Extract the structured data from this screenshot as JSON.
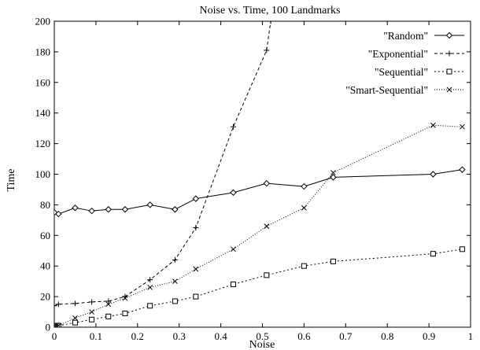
{
  "chart_data": {
    "type": "line",
    "title": "Noise vs. Time, 100 Landmarks",
    "xlabel": "Noise",
    "ylabel": "Time",
    "xlim": [
      0,
      1
    ],
    "ylim": [
      0,
      200
    ],
    "xticks": [
      "0",
      "0.1",
      "0.2",
      "0.3",
      "0.4",
      "0.5",
      "0.6",
      "0.7",
      "0.8",
      "0.9",
      "1"
    ],
    "yticks": [
      "0",
      "20",
      "40",
      "60",
      "80",
      "100",
      "120",
      "140",
      "160",
      "180",
      "200"
    ],
    "grid": false,
    "legend_position": "top-right",
    "series": [
      {
        "name": "\"Random\"",
        "marker": "diamond",
        "dash": "solid",
        "x": [
          0.0,
          0.01,
          0.05,
          0.09,
          0.13,
          0.17,
          0.23,
          0.29,
          0.34,
          0.43,
          0.51,
          0.6,
          0.67,
          0.91,
          0.98
        ],
        "y": [
          75,
          74,
          78,
          76,
          77,
          77,
          80,
          77,
          84,
          88,
          94,
          92,
          98,
          100,
          103
        ]
      },
      {
        "name": "\"Exponential\"",
        "marker": "plus",
        "dash": "dashed",
        "x": [
          0.0,
          0.01,
          0.05,
          0.09,
          0.13,
          0.17,
          0.23,
          0.29,
          0.34,
          0.43,
          0.51,
          0.52
        ],
        "y": [
          14,
          15,
          15.5,
          16.5,
          17,
          20,
          31,
          44,
          65,
          131,
          181,
          200
        ]
      },
      {
        "name": "\"Sequential\"",
        "marker": "square",
        "dash": "dotted",
        "x": [
          0.0,
          0.005,
          0.01,
          0.05,
          0.09,
          0.13,
          0.17,
          0.23,
          0.29,
          0.34,
          0.43,
          0.51,
          0.6,
          0.67,
          0.91,
          0.98
        ],
        "y": [
          1,
          1,
          1,
          3,
          5,
          7,
          9,
          14,
          17,
          20,
          28,
          34,
          40,
          43,
          48,
          51
        ]
      },
      {
        "name": "\"Smart-Sequential\"",
        "marker": "cross",
        "dash": "dotted-fine",
        "x": [
          0.0,
          0.005,
          0.01,
          0.05,
          0.09,
          0.13,
          0.17,
          0.23,
          0.29,
          0.34,
          0.43,
          0.51,
          0.6,
          0.67,
          0.91,
          0.98
        ],
        "y": [
          1,
          1,
          1,
          6,
          10,
          15,
          19,
          26,
          30,
          38,
          51,
          66,
          78,
          101,
          132,
          131
        ]
      }
    ]
  }
}
